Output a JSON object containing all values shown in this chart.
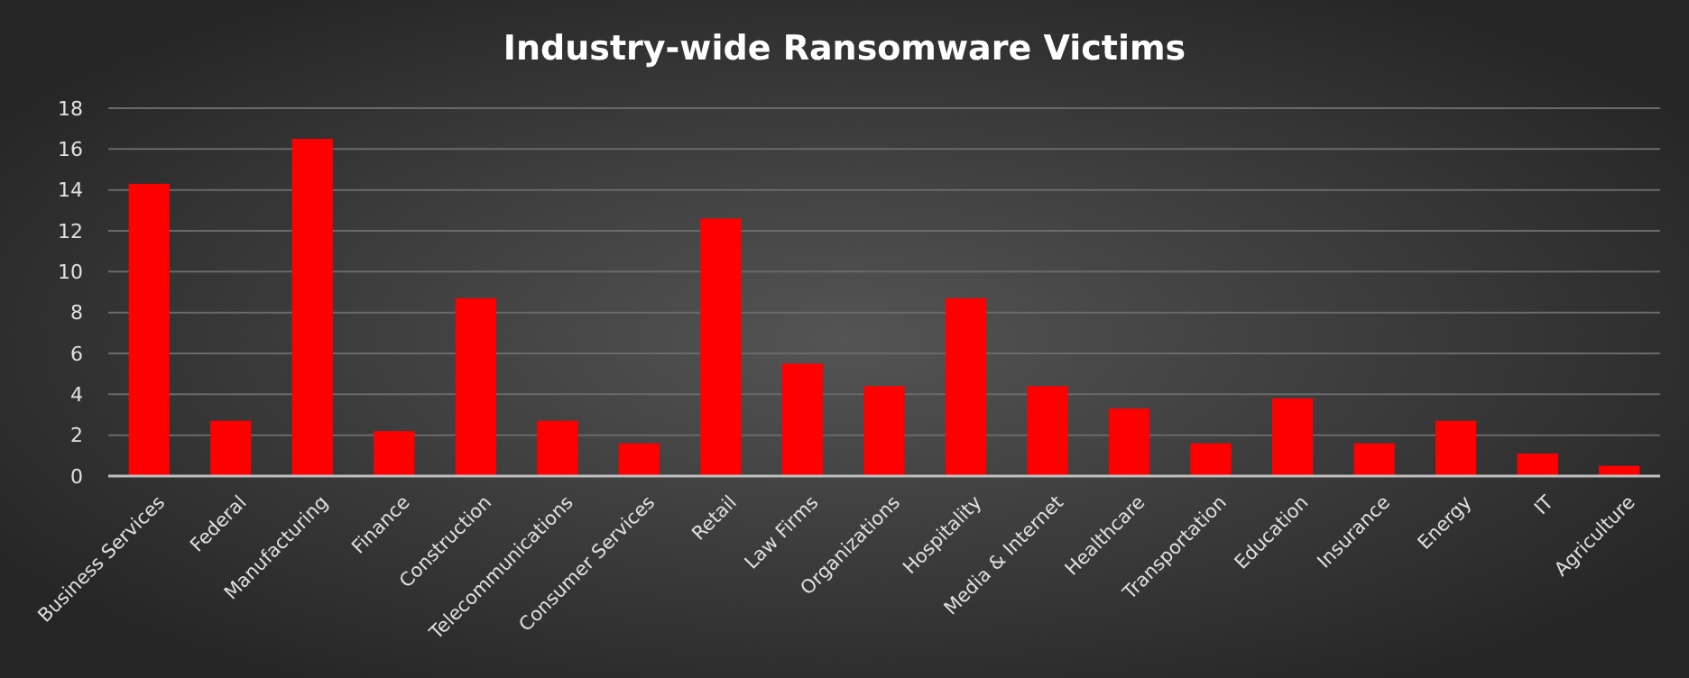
{
  "chart_data": {
    "type": "bar",
    "title": "Industry-wide Ransomware Victims",
    "categories": [
      "Business Services",
      "Federal",
      "Manufacturing",
      "Finance",
      "Construction",
      "Telecommunications",
      "Consumer Services",
      "Retail",
      "Law Firms",
      "Organizations",
      "Hospitality",
      "Media & Internet",
      "Healthcare",
      "Transportation",
      "Education",
      "Insurance",
      "Energy",
      "IT",
      "Agriculture"
    ],
    "values": [
      14.3,
      2.7,
      16.5,
      2.2,
      8.7,
      2.7,
      1.6,
      12.6,
      5.5,
      4.4,
      8.7,
      4.4,
      3.3,
      1.6,
      3.8,
      1.6,
      2.7,
      1.1,
      0.5
    ],
    "color": "#ff0000",
    "ylim": [
      0,
      18
    ],
    "yticks": [
      0,
      2,
      4,
      6,
      8,
      10,
      12,
      14,
      16,
      18
    ],
    "grid": "y"
  }
}
